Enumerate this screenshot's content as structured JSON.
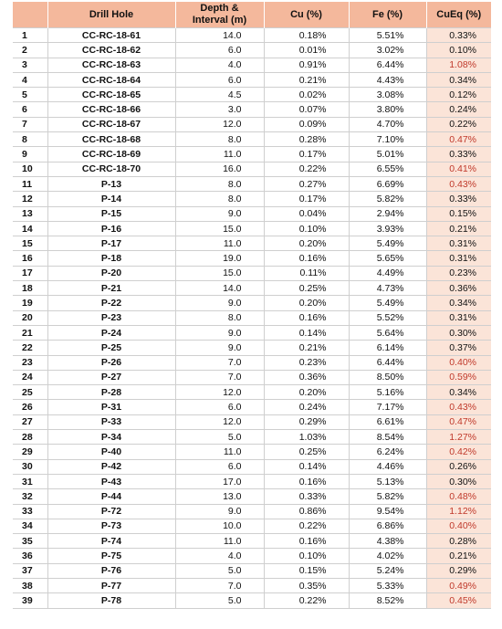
{
  "table": {
    "headers": {
      "index": "",
      "drill_hole": "Drill Hole",
      "depth_line1": "Depth &",
      "depth_line2": "Interval (m)",
      "cu": "Cu (%)",
      "fe": "Fe (%)",
      "cueq": "CuEq (%)"
    },
    "highlight_color": "#c0392b",
    "rows": [
      {
        "n": "1",
        "hole": "CC-RC-18-61",
        "depth": "14.0",
        "cu": "0.18%",
        "fe": "5.51%",
        "cueq": "0.33%",
        "high": false
      },
      {
        "n": "2",
        "hole": "CC-RC-18-62",
        "depth": "6.0",
        "cu": "0.01%",
        "fe": "3.02%",
        "cueq": "0.10%",
        "high": false
      },
      {
        "n": "3",
        "hole": "CC-RC-18-63",
        "depth": "4.0",
        "cu": "0.91%",
        "fe": "6.44%",
        "cueq": "1.08%",
        "high": true
      },
      {
        "n": "4",
        "hole": "CC-RC-18-64",
        "depth": "6.0",
        "cu": "0.21%",
        "fe": "4.43%",
        "cueq": "0.34%",
        "high": false
      },
      {
        "n": "5",
        "hole": "CC-RC-18-65",
        "depth": "4.5",
        "cu": "0.02%",
        "fe": "3.08%",
        "cueq": "0.12%",
        "high": false
      },
      {
        "n": "6",
        "hole": "CC-RC-18-66",
        "depth": "3.0",
        "cu": "0.07%",
        "fe": "3.80%",
        "cueq": "0.24%",
        "high": false
      },
      {
        "n": "7",
        "hole": "CC-RC-18-67",
        "depth": "12.0",
        "cu": "0.09%",
        "fe": "4.70%",
        "cueq": "0.22%",
        "high": false
      },
      {
        "n": "8",
        "hole": "CC-RC-18-68",
        "depth": "8.0",
        "cu": "0.28%",
        "fe": "7.10%",
        "cueq": "0.47%",
        "high": true
      },
      {
        "n": "9",
        "hole": "CC-RC-18-69",
        "depth": "11.0",
        "cu": "0.17%",
        "fe": "5.01%",
        "cueq": "0.33%",
        "high": false
      },
      {
        "n": "10",
        "hole": "CC-RC-18-70",
        "depth": "16.0",
        "cu": "0.22%",
        "fe": "6.55%",
        "cueq": "0.41%",
        "high": true
      },
      {
        "n": "11",
        "hole": "P-13",
        "depth": "8.0",
        "cu": "0.27%",
        "fe": "6.69%",
        "cueq": "0.43%",
        "high": true
      },
      {
        "n": "12",
        "hole": "P-14",
        "depth": "8.0",
        "cu": "0.17%",
        "fe": "5.82%",
        "cueq": "0.33%",
        "high": false
      },
      {
        "n": "13",
        "hole": "P-15",
        "depth": "9.0",
        "cu": "0.04%",
        "fe": "2.94%",
        "cueq": "0.15%",
        "high": false
      },
      {
        "n": "14",
        "hole": "P-16",
        "depth": "15.0",
        "cu": "0.10%",
        "fe": "3.93%",
        "cueq": "0.21%",
        "high": false
      },
      {
        "n": "15",
        "hole": "P-17",
        "depth": "11.0",
        "cu": "0.20%",
        "fe": "5.49%",
        "cueq": "0.31%",
        "high": false
      },
      {
        "n": "16",
        "hole": "P-18",
        "depth": "19.0",
        "cu": "0.16%",
        "fe": "5.65%",
        "cueq": "0.31%",
        "high": false
      },
      {
        "n": "17",
        "hole": "P-20",
        "depth": "15.0",
        "cu": "0.11%",
        "fe": "4.49%",
        "cueq": "0.23%",
        "high": false
      },
      {
        "n": "18",
        "hole": "P-21",
        "depth": "14.0",
        "cu": "0.25%",
        "fe": "4.73%",
        "cueq": "0.36%",
        "high": false
      },
      {
        "n": "19",
        "hole": "P-22",
        "depth": "9.0",
        "cu": "0.20%",
        "fe": "5.49%",
        "cueq": "0.34%",
        "high": false
      },
      {
        "n": "20",
        "hole": "P-23",
        "depth": "8.0",
        "cu": "0.16%",
        "fe": "5.52%",
        "cueq": "0.31%",
        "high": false
      },
      {
        "n": "21",
        "hole": "P-24",
        "depth": "9.0",
        "cu": "0.14%",
        "fe": "5.64%",
        "cueq": "0.30%",
        "high": false
      },
      {
        "n": "22",
        "hole": "P-25",
        "depth": "9.0",
        "cu": "0.21%",
        "fe": "6.14%",
        "cueq": "0.37%",
        "high": false
      },
      {
        "n": "23",
        "hole": "P-26",
        "depth": "7.0",
        "cu": "0.23%",
        "fe": "6.44%",
        "cueq": "0.40%",
        "high": true
      },
      {
        "n": "24",
        "hole": "P-27",
        "depth": "7.0",
        "cu": "0.36%",
        "fe": "8.50%",
        "cueq": "0.59%",
        "high": true
      },
      {
        "n": "25",
        "hole": "P-28",
        "depth": "12.0",
        "cu": "0.20%",
        "fe": "5.16%",
        "cueq": "0.34%",
        "high": false
      },
      {
        "n": "26",
        "hole": "P-31",
        "depth": "6.0",
        "cu": "0.24%",
        "fe": "7.17%",
        "cueq": "0.43%",
        "high": true
      },
      {
        "n": "27",
        "hole": "P-33",
        "depth": "12.0",
        "cu": "0.29%",
        "fe": "6.61%",
        "cueq": "0.47%",
        "high": true
      },
      {
        "n": "28",
        "hole": "P-34",
        "depth": "5.0",
        "cu": "1.03%",
        "fe": "8.54%",
        "cueq": "1.27%",
        "high": true
      },
      {
        "n": "29",
        "hole": "P-40",
        "depth": "11.0",
        "cu": "0.25%",
        "fe": "6.24%",
        "cueq": "0.42%",
        "high": true
      },
      {
        "n": "30",
        "hole": "P-42",
        "depth": "6.0",
        "cu": "0.14%",
        "fe": "4.46%",
        "cueq": "0.26%",
        "high": false
      },
      {
        "n": "31",
        "hole": "P-43",
        "depth": "17.0",
        "cu": "0.16%",
        "fe": "5.13%",
        "cueq": "0.30%",
        "high": false
      },
      {
        "n": "32",
        "hole": "P-44",
        "depth": "13.0",
        "cu": "0.33%",
        "fe": "5.82%",
        "cueq": "0.48%",
        "high": true
      },
      {
        "n": "33",
        "hole": "P-72",
        "depth": "9.0",
        "cu": "0.86%",
        "fe": "9.54%",
        "cueq": "1.12%",
        "high": true
      },
      {
        "n": "34",
        "hole": "P-73",
        "depth": "10.0",
        "cu": "0.22%",
        "fe": "6.86%",
        "cueq": "0.40%",
        "high": true
      },
      {
        "n": "35",
        "hole": "P-74",
        "depth": "11.0",
        "cu": "0.16%",
        "fe": "4.38%",
        "cueq": "0.28%",
        "high": false
      },
      {
        "n": "36",
        "hole": "P-75",
        "depth": "4.0",
        "cu": "0.10%",
        "fe": "4.02%",
        "cueq": "0.21%",
        "high": false
      },
      {
        "n": "37",
        "hole": "P-76",
        "depth": "5.0",
        "cu": "0.15%",
        "fe": "5.24%",
        "cueq": "0.29%",
        "high": false
      },
      {
        "n": "38",
        "hole": "P-77",
        "depth": "7.0",
        "cu": "0.35%",
        "fe": "5.33%",
        "cueq": "0.49%",
        "high": true
      },
      {
        "n": "39",
        "hole": "P-78",
        "depth": "5.0",
        "cu": "0.22%",
        "fe": "8.52%",
        "cueq": "0.45%",
        "high": true
      }
    ]
  }
}
